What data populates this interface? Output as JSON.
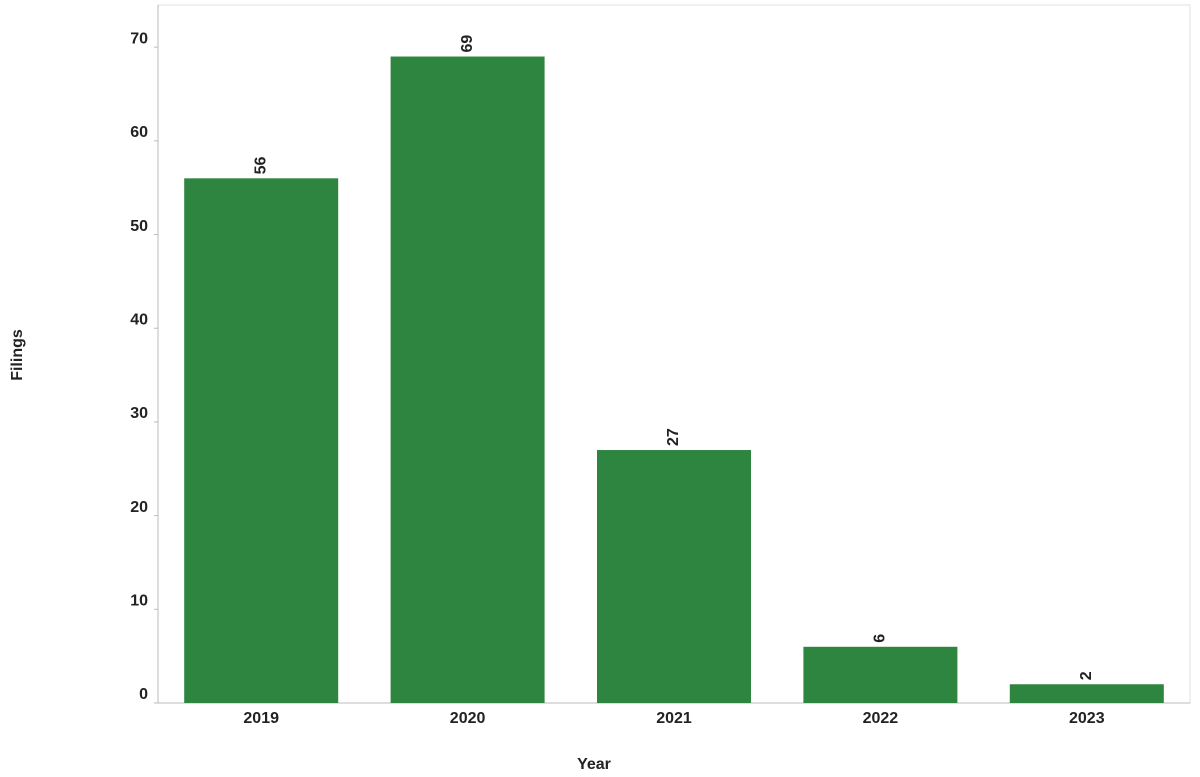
{
  "chart_data": {
    "type": "bar",
    "x_label": "Year",
    "y_label": "Filings",
    "categories": [
      "2019",
      "2020",
      "2021",
      "2022",
      "2023"
    ],
    "values": [
      56,
      69,
      27,
      6,
      2
    ],
    "color": "#2e8540",
    "ylim": [
      0,
      74.5
    ],
    "yticks": [
      0,
      10,
      20,
      30,
      40,
      50,
      60,
      70
    ]
  }
}
